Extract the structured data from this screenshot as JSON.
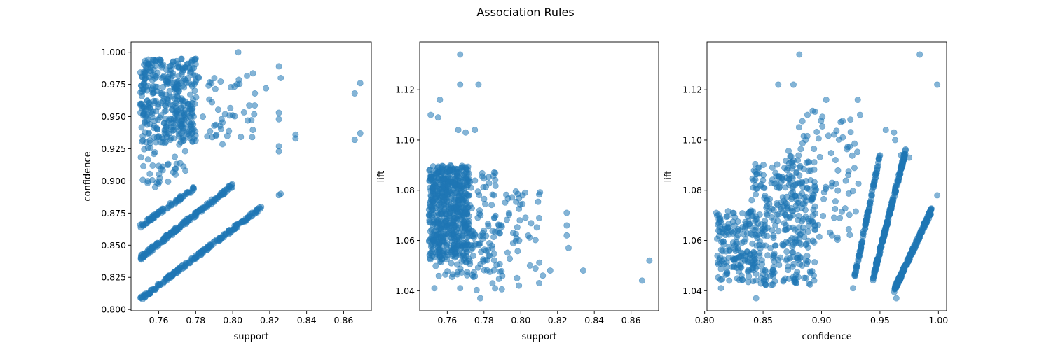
{
  "figure": {
    "title": "Association Rules"
  },
  "marker": {
    "color": "#1f77b4",
    "alpha": 0.55
  },
  "chart_data": [
    {
      "type": "scatter",
      "name_id": "left",
      "title": "",
      "xlabel": "support",
      "ylabel": "confidence",
      "xlim": [
        0.745,
        0.875
      ],
      "ylim": [
        0.799,
        1.008
      ],
      "xticks": [
        0.76,
        0.78,
        0.8,
        0.82,
        0.84,
        0.86
      ],
      "xtick_labels": [
        "0.76",
        "0.78",
        "0.80",
        "0.82",
        "0.84",
        "0.86"
      ],
      "yticks": [
        0.8,
        0.825,
        0.85,
        0.875,
        0.9,
        0.925,
        0.95,
        0.975,
        1.0
      ],
      "ytick_labels": [
        "0.800",
        "0.825",
        "0.850",
        "0.875",
        "0.900",
        "0.925",
        "0.950",
        "0.975",
        "1.000"
      ],
      "grid": false,
      "clusters": [
        {
          "x": [
            0.75,
            0.78
          ],
          "y": [
            0.93,
            0.995
          ],
          "n": 360
        },
        {
          "x": [
            0.77,
            0.812
          ],
          "y": [
            0.925,
            0.988
          ],
          "n": 60
        },
        {
          "x": [
            0.75,
            0.775
          ],
          "y": [
            0.895,
            0.93
          ],
          "n": 40
        }
      ],
      "lines": [
        {
          "x": [
            0.75,
            0.779
          ],
          "y": [
            0.865,
            0.894
          ],
          "n": 80,
          "jitter": 0.0015
        },
        {
          "x": [
            0.75,
            0.8
          ],
          "y": [
            0.84,
            0.897
          ],
          "n": 180,
          "jitter": 0.0018
        },
        {
          "x": [
            0.75,
            0.816
          ],
          "y": [
            0.808,
            0.88
          ],
          "n": 200,
          "jitter": 0.0015
        }
      ],
      "points": [
        {
          "x": 0.803,
          "y": 1.0
        },
        {
          "x": 0.825,
          "y": 0.989
        },
        {
          "x": 0.826,
          "y": 0.98
        },
        {
          "x": 0.825,
          "y": 0.953
        },
        {
          "x": 0.825,
          "y": 0.948
        },
        {
          "x": 0.825,
          "y": 0.927
        },
        {
          "x": 0.825,
          "y": 0.923
        },
        {
          "x": 0.834,
          "y": 0.936
        },
        {
          "x": 0.834,
          "y": 0.933
        },
        {
          "x": 0.825,
          "y": 0.889
        },
        {
          "x": 0.826,
          "y": 0.89
        },
        {
          "x": 0.869,
          "y": 0.976
        },
        {
          "x": 0.866,
          "y": 0.968
        },
        {
          "x": 0.869,
          "y": 0.937
        },
        {
          "x": 0.866,
          "y": 0.932
        },
        {
          "x": 0.818,
          "y": 0.972
        },
        {
          "x": 0.812,
          "y": 0.968
        },
        {
          "x": 0.8,
          "y": 0.951
        },
        {
          "x": 0.794,
          "y": 0.948
        },
        {
          "x": 0.79,
          "y": 0.943
        }
      ]
    },
    {
      "type": "scatter",
      "name_id": "middle",
      "title": "",
      "xlabel": "support",
      "ylabel": "lift",
      "xlim": [
        0.745,
        0.875
      ],
      "ylim": [
        1.032,
        1.139
      ],
      "xticks": [
        0.76,
        0.78,
        0.8,
        0.82,
        0.84,
        0.86
      ],
      "xtick_labels": [
        "0.76",
        "0.78",
        "0.80",
        "0.82",
        "0.84",
        "0.86"
      ],
      "yticks": [
        1.04,
        1.06,
        1.08,
        1.1,
        1.12
      ],
      "ytick_labels": [
        "1.04",
        "1.06",
        "1.08",
        "1.10",
        "1.12"
      ],
      "grid": false,
      "clusters": [
        {
          "x": [
            0.75,
            0.772
          ],
          "y": [
            1.052,
            1.09
          ],
          "n": 520
        },
        {
          "x": [
            0.75,
            0.79
          ],
          "y": [
            1.045,
            1.088
          ],
          "n": 180
        },
        {
          "x": [
            0.77,
            0.812
          ],
          "y": [
            1.04,
            1.08
          ],
          "n": 70
        }
      ],
      "lines": [],
      "points": [
        {
          "x": 0.767,
          "y": 1.134
        },
        {
          "x": 0.767,
          "y": 1.122
        },
        {
          "x": 0.777,
          "y": 1.122
        },
        {
          "x": 0.756,
          "y": 1.116
        },
        {
          "x": 0.751,
          "y": 1.11
        },
        {
          "x": 0.755,
          "y": 1.109
        },
        {
          "x": 0.766,
          "y": 1.104
        },
        {
          "x": 0.775,
          "y": 1.104
        },
        {
          "x": 0.77,
          "y": 1.103
        },
        {
          "x": 0.825,
          "y": 1.071
        },
        {
          "x": 0.825,
          "y": 1.066
        },
        {
          "x": 0.825,
          "y": 1.062
        },
        {
          "x": 0.826,
          "y": 1.057
        },
        {
          "x": 0.834,
          "y": 1.048
        },
        {
          "x": 0.87,
          "y": 1.052
        },
        {
          "x": 0.866,
          "y": 1.044
        },
        {
          "x": 0.816,
          "y": 1.048
        },
        {
          "x": 0.812,
          "y": 1.046
        },
        {
          "x": 0.81,
          "y": 1.043
        },
        {
          "x": 0.801,
          "y": 1.078
        },
        {
          "x": 0.805,
          "y": 1.05
        },
        {
          "x": 0.753,
          "y": 1.041
        },
        {
          "x": 0.767,
          "y": 1.041
        },
        {
          "x": 0.778,
          "y": 1.037
        },
        {
          "x": 0.799,
          "y": 1.042
        }
      ]
    },
    {
      "type": "scatter",
      "name_id": "right",
      "title": "",
      "xlabel": "confidence",
      "ylabel": "lift",
      "xlim": [
        0.802,
        1.007
      ],
      "ylim": [
        1.032,
        1.139
      ],
      "xticks": [
        0.8,
        0.85,
        0.9,
        0.95,
        1.0
      ],
      "xtick_labels": [
        "0.80",
        "0.85",
        "0.90",
        "0.95",
        "1.00"
      ],
      "yticks": [
        1.04,
        1.06,
        1.08,
        1.1,
        1.12
      ],
      "ytick_labels": [
        "1.04",
        "1.06",
        "1.08",
        "1.10",
        "1.12"
      ],
      "grid": false,
      "clusters": [
        {
          "x": [
            0.81,
            0.845
          ],
          "y": [
            1.043,
            1.072
          ],
          "n": 170
        },
        {
          "x": [
            0.84,
            0.895
          ],
          "y": [
            1.042,
            1.092
          ],
          "n": 330
        },
        {
          "x": [
            0.87,
            0.932
          ],
          "y": [
            1.06,
            1.112
          ],
          "n": 90
        }
      ],
      "lines": [
        {
          "x": [
            0.928,
            0.95
          ],
          "y": [
            1.045,
            1.094
          ],
          "n": 100,
          "jitter": 0.0012
        },
        {
          "x": [
            0.944,
            0.972
          ],
          "y": [
            1.045,
            1.096
          ],
          "n": 220,
          "jitter": 0.0012
        },
        {
          "x": [
            0.962,
            0.994
          ],
          "y": [
            1.04,
            1.072
          ],
          "n": 210,
          "jitter": 0.001
        }
      ],
      "points": [
        {
          "x": 0.881,
          "y": 1.134
        },
        {
          "x": 0.984,
          "y": 1.134
        },
        {
          "x": 0.999,
          "y": 1.122
        },
        {
          "x": 0.863,
          "y": 1.122
        },
        {
          "x": 0.876,
          "y": 1.122
        },
        {
          "x": 0.999,
          "y": 1.078
        },
        {
          "x": 0.931,
          "y": 1.116
        },
        {
          "x": 0.904,
          "y": 1.116
        },
        {
          "x": 0.888,
          "y": 1.11
        },
        {
          "x": 0.955,
          "y": 1.104
        },
        {
          "x": 0.962,
          "y": 1.103
        },
        {
          "x": 0.963,
          "y": 1.1
        },
        {
          "x": 0.968,
          "y": 1.094
        },
        {
          "x": 0.975,
          "y": 1.093
        },
        {
          "x": 0.933,
          "y": 1.11
        },
        {
          "x": 0.81,
          "y": 1.071
        },
        {
          "x": 0.814,
          "y": 1.041
        },
        {
          "x": 0.844,
          "y": 1.037
        },
        {
          "x": 0.964,
          "y": 1.037
        },
        {
          "x": 0.927,
          "y": 1.041
        }
      ]
    }
  ]
}
